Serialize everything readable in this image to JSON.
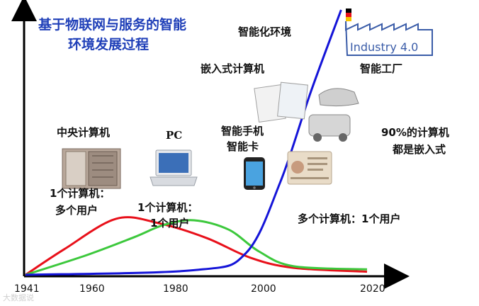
{
  "title_lines": [
    "基于物联网与服务的智能",
    "环境发展过程"
  ],
  "x_ticks": [
    {
      "label": "1941",
      "year": 1941
    },
    {
      "label": "1960",
      "year": 1960
    },
    {
      "label": "1980",
      "year": 1980
    },
    {
      "label": "2000",
      "year": 2000
    },
    {
      "label": "2020",
      "year": 2020
    }
  ],
  "labels": {
    "smart_env": "智能化环境",
    "embedded_computer": "嵌入式计算机",
    "smart_factory": "智能工厂",
    "mainframe": "中央计算机",
    "pc": "PC",
    "smartphone": "智能手机",
    "smartcard": "智能卡",
    "embedded_share_1": "90%的计算机",
    "embedded_share_2": "都是嵌入式",
    "one_computer_many_users_1": "1个计算机：",
    "one_computer_many_users_2": "多个用户",
    "one_computer_one_user_1": "1个计算机：",
    "one_computer_one_user_2": "1个用户",
    "many_computers_one_user": "多个计算机：1个用户"
  },
  "industry_logo_text": "Industry 4.0",
  "watermark": "大数据说",
  "colors": {
    "title_blue": "#1f3fb8",
    "red_curve": "#e8101a",
    "green_curve": "#3cc83c",
    "blue_curve": "#1414d8",
    "axis": "#000000",
    "logo_blue": "#3a5ca8"
  },
  "chart_data": {
    "type": "line",
    "x_range": [
      1941,
      2020
    ],
    "series": [
      {
        "color": "red_curve",
        "points": [
          [
            1941,
            0
          ],
          [
            1950,
            0.33
          ],
          [
            1962,
            0.72
          ],
          [
            1972,
            0.66
          ],
          [
            1983,
            0.47
          ],
          [
            1993,
            0.22
          ],
          [
            2003,
            0.09
          ],
          [
            2020,
            0.04
          ]
        ]
      },
      {
        "color": "green_curve",
        "points": [
          [
            1941,
            0
          ],
          [
            1955,
            0.25
          ],
          [
            1966,
            0.48
          ],
          [
            1973,
            0.64
          ],
          [
            1980,
            0.7
          ],
          [
            1988,
            0.58
          ],
          [
            1995,
            0.3
          ],
          [
            2003,
            0.11
          ],
          [
            2020,
            0.07
          ]
        ]
      },
      {
        "color": "blue_curve",
        "points": [
          [
            1941,
            0
          ],
          [
            1980,
            0.06
          ],
          [
            1992,
            0.28
          ],
          [
            2000,
            1.2
          ],
          [
            2007,
            2.35
          ],
          [
            2014,
            3.4
          ]
        ]
      }
    ]
  }
}
